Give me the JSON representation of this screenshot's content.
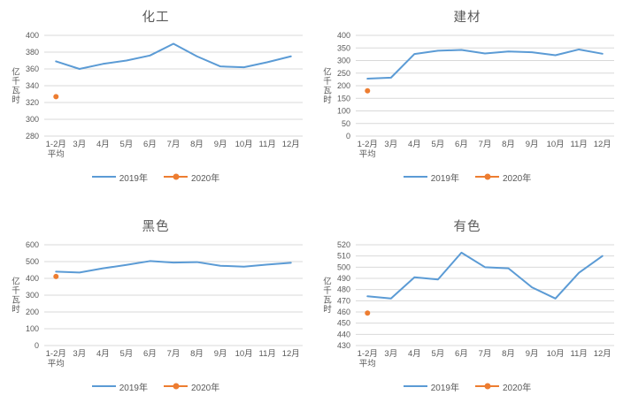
{
  "colors": {
    "series_2019": "#5B9BD5",
    "series_2020": "#ED7D31",
    "gridline": "#D9D9D9",
    "text": "#595959",
    "background": "#FFFFFF"
  },
  "chart_data": [
    {
      "type": "line",
      "title": "化工",
      "ylabel": "亿千瓦时",
      "categories": [
        "1-2月\n平均",
        "3月",
        "4月",
        "5月",
        "6月",
        "7月",
        "8月",
        "9月",
        "10月",
        "11月",
        "12月"
      ],
      "series": [
        {
          "name": "2019年",
          "color": "#5B9BD5",
          "marker": "none",
          "values": [
            369,
            360,
            366,
            370,
            376,
            390,
            375,
            363,
            362,
            368,
            375
          ]
        },
        {
          "name": "2020年",
          "color": "#ED7D31",
          "marker": "dot",
          "values": [
            327,
            null,
            null,
            null,
            null,
            null,
            null,
            null,
            null,
            null,
            null
          ]
        }
      ],
      "ylim": [
        280,
        400
      ],
      "ytick_step": 20,
      "grid": true,
      "legend_position": "bottom"
    },
    {
      "type": "line",
      "title": "建材",
      "ylabel": "亿千瓦时",
      "categories": [
        "1-2月\n平均",
        "3月",
        "4月",
        "5月",
        "6月",
        "7月",
        "8月",
        "9月",
        "10月",
        "11月",
        "12月"
      ],
      "series": [
        {
          "name": "2019年",
          "color": "#5B9BD5",
          "marker": "none",
          "values": [
            228,
            232,
            326,
            339,
            342,
            328,
            336,
            333,
            321,
            344,
            327
          ]
        },
        {
          "name": "2020年",
          "color": "#ED7D31",
          "marker": "dot",
          "values": [
            180,
            null,
            null,
            null,
            null,
            null,
            null,
            null,
            null,
            null,
            null
          ]
        }
      ],
      "ylim": [
        0,
        400
      ],
      "ytick_step": 50,
      "grid": true,
      "legend_position": "bottom"
    },
    {
      "type": "line",
      "title": "黑色",
      "ylabel": "亿千瓦时",
      "categories": [
        "1-2月\n平均",
        "3月",
        "4月",
        "5月",
        "6月",
        "7月",
        "8月",
        "9月",
        "10月",
        "11月",
        "12月"
      ],
      "series": [
        {
          "name": "2019年",
          "color": "#5B9BD5",
          "marker": "none",
          "values": [
            440,
            435,
            460,
            480,
            503,
            494,
            497,
            475,
            470,
            482,
            493
          ]
        },
        {
          "name": "2020年",
          "color": "#ED7D31",
          "marker": "dot",
          "values": [
            411,
            null,
            null,
            null,
            null,
            null,
            null,
            null,
            null,
            null,
            null
          ]
        }
      ],
      "ylim": [
        0,
        600
      ],
      "ytick_step": 100,
      "grid": true,
      "legend_position": "bottom"
    },
    {
      "type": "line",
      "title": "有色",
      "ylabel": "亿千瓦时",
      "categories": [
        "1-2月\n平均",
        "3月",
        "4月",
        "5月",
        "6月",
        "7月",
        "8月",
        "9月",
        "10月",
        "11月",
        "12月"
      ],
      "series": [
        {
          "name": "2019年",
          "color": "#5B9BD5",
          "marker": "none",
          "values": [
            474,
            472,
            491,
            489,
            513,
            500,
            499,
            482,
            472,
            495,
            510
          ]
        },
        {
          "name": "2020年",
          "color": "#ED7D31",
          "marker": "dot",
          "values": [
            459,
            null,
            null,
            null,
            null,
            null,
            null,
            null,
            null,
            null,
            null
          ]
        }
      ],
      "ylim": [
        430,
        520
      ],
      "ytick_step": 10,
      "grid": true,
      "legend_position": "bottom"
    }
  ]
}
